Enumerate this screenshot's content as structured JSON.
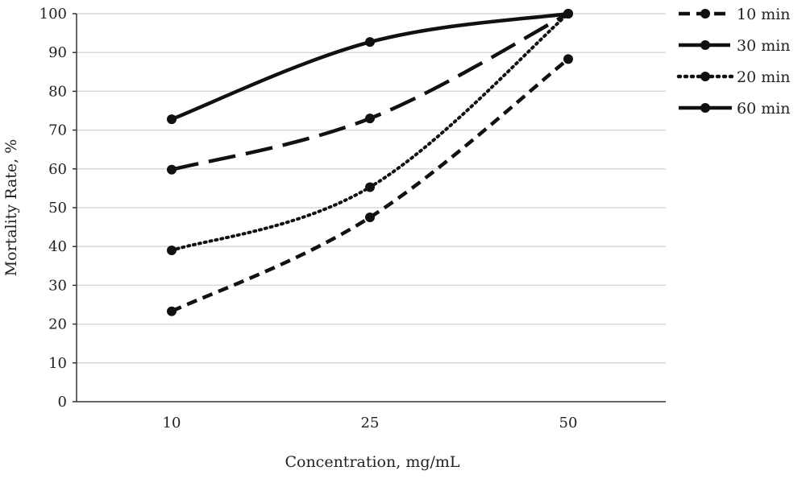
{
  "chart_data": {
    "type": "line",
    "xlabel": "Concentration, mg/mL",
    "ylabel": "Mortality Rate, %",
    "categories": [
      "10",
      "25",
      "50"
    ],
    "ylim": [
      0,
      100
    ],
    "yticks": [
      0,
      10,
      20,
      30,
      40,
      50,
      60,
      70,
      80,
      90,
      100
    ],
    "grid": true,
    "legend_position": "right",
    "colors": {
      "series": "#111111",
      "grid": "#d9d9d9",
      "axis": "#333333"
    },
    "series": [
      {
        "name": "10 min",
        "style": "dashed",
        "values": [
          23.3,
          47.5,
          88.3
        ]
      },
      {
        "name": "30 min",
        "style": "long-dashed",
        "values": [
          59.8,
          73,
          100
        ]
      },
      {
        "name": "20 min",
        "style": "dotted",
        "values": [
          39,
          55.3,
          100
        ]
      },
      {
        "name": "60 min",
        "style": "solid",
        "values": [
          72.8,
          92.7,
          100
        ]
      }
    ]
  }
}
